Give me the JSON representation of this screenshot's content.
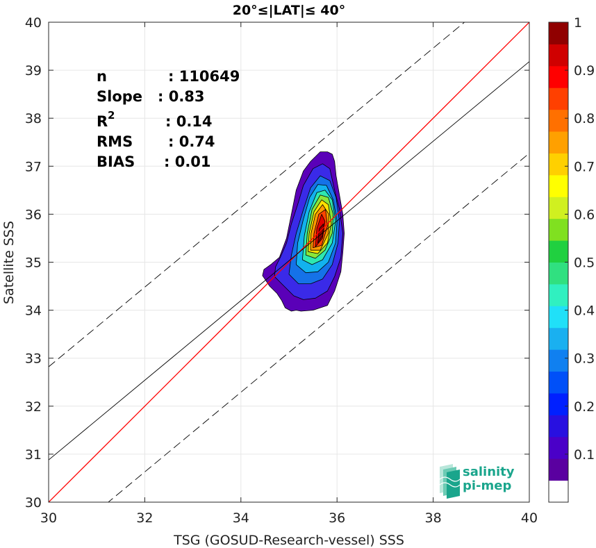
{
  "chart_data": {
    "type": "scatter",
    "title": "20°≤|LAT|≤ 40°",
    "xlabel": "TSG (GOSUD-Research-vessel) SSS",
    "ylabel": "Satellite SSS",
    "xlim": [
      30,
      40
    ],
    "ylim": [
      30,
      40
    ],
    "x_ticks": [
      "30",
      "32",
      "34",
      "36",
      "38",
      "40"
    ],
    "y_ticks": [
      "30",
      "31",
      "32",
      "33",
      "34",
      "35",
      "36",
      "37",
      "38",
      "39",
      "40"
    ],
    "grid": true,
    "stats": [
      {
        "label": "n",
        "value": ": 110649"
      },
      {
        "label": "Slope",
        "value": ": 0.83"
      },
      {
        "label": "R",
        "sup": "2",
        "value": ": 0.14"
      },
      {
        "label": "RMS",
        "value": ": 0.74"
      },
      {
        "label": "BIAS",
        "value": ": 0.01"
      }
    ],
    "lines": {
      "identity": {
        "slope": 1,
        "intercept": 0,
        "color": "#ff0000"
      },
      "regression": {
        "slope": 0.83,
        "intercept": 5.98,
        "color": "#000000"
      },
      "upper_dashed": {
        "slope": 0.83,
        "intercept": 7.92,
        "color": "#000000"
      },
      "lower_dashed": {
        "slope": 0.83,
        "intercept": 4.07,
        "color": "#000000"
      }
    },
    "density": {
      "center": [
        35.67,
        35.75
      ],
      "levels": [
        {
          "level": 0.05,
          "color": "#5a00b8",
          "x": [
            34.45,
            34.6,
            34.75,
            34.85,
            34.92,
            35.05,
            35.15,
            35.25,
            35.5,
            35.8,
            35.95,
            36.08,
            36.12,
            36.15,
            36.12,
            36.05,
            35.98,
            35.95,
            35.9,
            35.8,
            35.65,
            35.45,
            35.3,
            35.15,
            35.05,
            34.95,
            34.8,
            34.62,
            34.48
          ],
          "y": [
            34.72,
            34.5,
            34.35,
            34.2,
            34.05,
            33.98,
            34.0,
            33.98,
            34.0,
            34.1,
            34.4,
            34.8,
            35.2,
            35.6,
            36.0,
            36.4,
            36.8,
            37.1,
            37.25,
            37.3,
            37.3,
            37.1,
            36.9,
            36.5,
            36.0,
            35.5,
            35.1,
            34.95,
            34.85
          ]
        },
        {
          "level": 0.15,
          "color": "#3a2ae8",
          "x": [
            34.7,
            34.9,
            35.1,
            35.3,
            35.55,
            35.8,
            35.95,
            36.08,
            36.12,
            36.05,
            35.95,
            35.85,
            35.7,
            35.5,
            35.3,
            35.18,
            35.05,
            34.95,
            34.82,
            34.72
          ],
          "y": [
            34.7,
            34.5,
            34.3,
            34.22,
            34.25,
            34.4,
            34.7,
            35.1,
            35.6,
            36.1,
            36.5,
            36.95,
            37.05,
            36.95,
            36.6,
            36.2,
            35.8,
            35.4,
            35.1,
            34.9
          ]
        },
        {
          "level": 0.25,
          "color": "#1572e8",
          "x": [
            35.0,
            35.2,
            35.45,
            35.7,
            35.9,
            36.02,
            36.05,
            35.98,
            35.85,
            35.65,
            35.45,
            35.3,
            35.15,
            35.05
          ],
          "y": [
            34.75,
            34.55,
            34.55,
            34.65,
            34.95,
            35.4,
            35.85,
            36.35,
            36.7,
            36.8,
            36.55,
            36.1,
            35.6,
            35.15
          ]
        },
        {
          "level": 0.35,
          "color": "#12b2ee",
          "x": [
            35.15,
            35.35,
            35.6,
            35.82,
            35.97,
            36.0,
            35.92,
            35.78,
            35.6,
            35.43,
            35.3,
            35.18
          ],
          "y": [
            34.95,
            34.78,
            34.8,
            35.0,
            35.4,
            35.85,
            36.3,
            36.6,
            36.62,
            36.35,
            35.9,
            35.4
          ]
        },
        {
          "level": 0.45,
          "color": "#2ee8b0",
          "x": [
            35.28,
            35.48,
            35.7,
            35.9,
            35.97,
            35.9,
            35.75,
            35.58,
            35.42,
            35.32
          ],
          "y": [
            35.05,
            34.95,
            35.05,
            35.4,
            35.85,
            36.3,
            36.5,
            36.45,
            36.05,
            35.55
          ]
        },
        {
          "level": 0.55,
          "color": "#8ae63a",
          "x": [
            35.35,
            35.55,
            35.75,
            35.9,
            35.92,
            35.82,
            35.65,
            35.48,
            35.38
          ],
          "y": [
            35.15,
            35.08,
            35.25,
            35.6,
            36.0,
            36.35,
            36.4,
            36.1,
            35.6
          ]
        },
        {
          "level": 0.65,
          "color": "#ffe000",
          "x": [
            35.4,
            35.6,
            35.8,
            35.88,
            35.82,
            35.68,
            35.52,
            35.42
          ],
          "y": [
            35.22,
            35.18,
            35.4,
            35.8,
            36.2,
            36.3,
            36.05,
            35.6
          ]
        },
        {
          "level": 0.75,
          "color": "#ff9a00",
          "x": [
            35.45,
            35.65,
            35.82,
            35.83,
            35.7,
            35.55,
            35.46
          ],
          "y": [
            35.25,
            35.25,
            35.6,
            36.0,
            36.2,
            36.0,
            35.6
          ]
        },
        {
          "level": 0.85,
          "color": "#ff4500",
          "x": [
            35.5,
            35.68,
            35.8,
            35.76,
            35.62,
            35.52
          ],
          "y": [
            35.3,
            35.35,
            35.75,
            36.1,
            36.0,
            35.6
          ]
        },
        {
          "level": 0.95,
          "color": "#e00000",
          "x": [
            35.55,
            35.7,
            35.75,
            35.68,
            35.58
          ],
          "y": [
            35.32,
            35.5,
            35.85,
            36.0,
            35.7
          ]
        },
        {
          "level": 1.0,
          "color": "#8b0000",
          "x": [
            35.6,
            35.7,
            35.72,
            35.63
          ],
          "y": [
            35.4,
            35.55,
            35.8,
            35.7
          ]
        }
      ]
    },
    "colorbar": {
      "range": [
        0,
        1
      ],
      "tick_labels": [
        "0.1",
        "0.2",
        "0.3",
        "0.4",
        "0.5",
        "0.6",
        "0.7",
        "0.8",
        "0.9",
        "1"
      ],
      "tick_values": [
        0.1,
        0.2,
        0.3,
        0.4,
        0.5,
        0.6,
        0.7,
        0.8,
        0.9,
        1.0
      ],
      "colors": [
        "#ffffff",
        "#5a00a0",
        "#4a00c8",
        "#2810e0",
        "#0020ff",
        "#0050f8",
        "#1080f0",
        "#1ab0f0",
        "#20e0f8",
        "#30f0c0",
        "#30e080",
        "#20d040",
        "#80e020",
        "#d0f020",
        "#ffff00",
        "#ffd000",
        "#ffa000",
        "#ff7000",
        "#ff4000",
        "#ff0000",
        "#d00000",
        "#900000"
      ]
    }
  },
  "logo": {
    "line1": "salinity",
    "line2": "pi-mep"
  }
}
